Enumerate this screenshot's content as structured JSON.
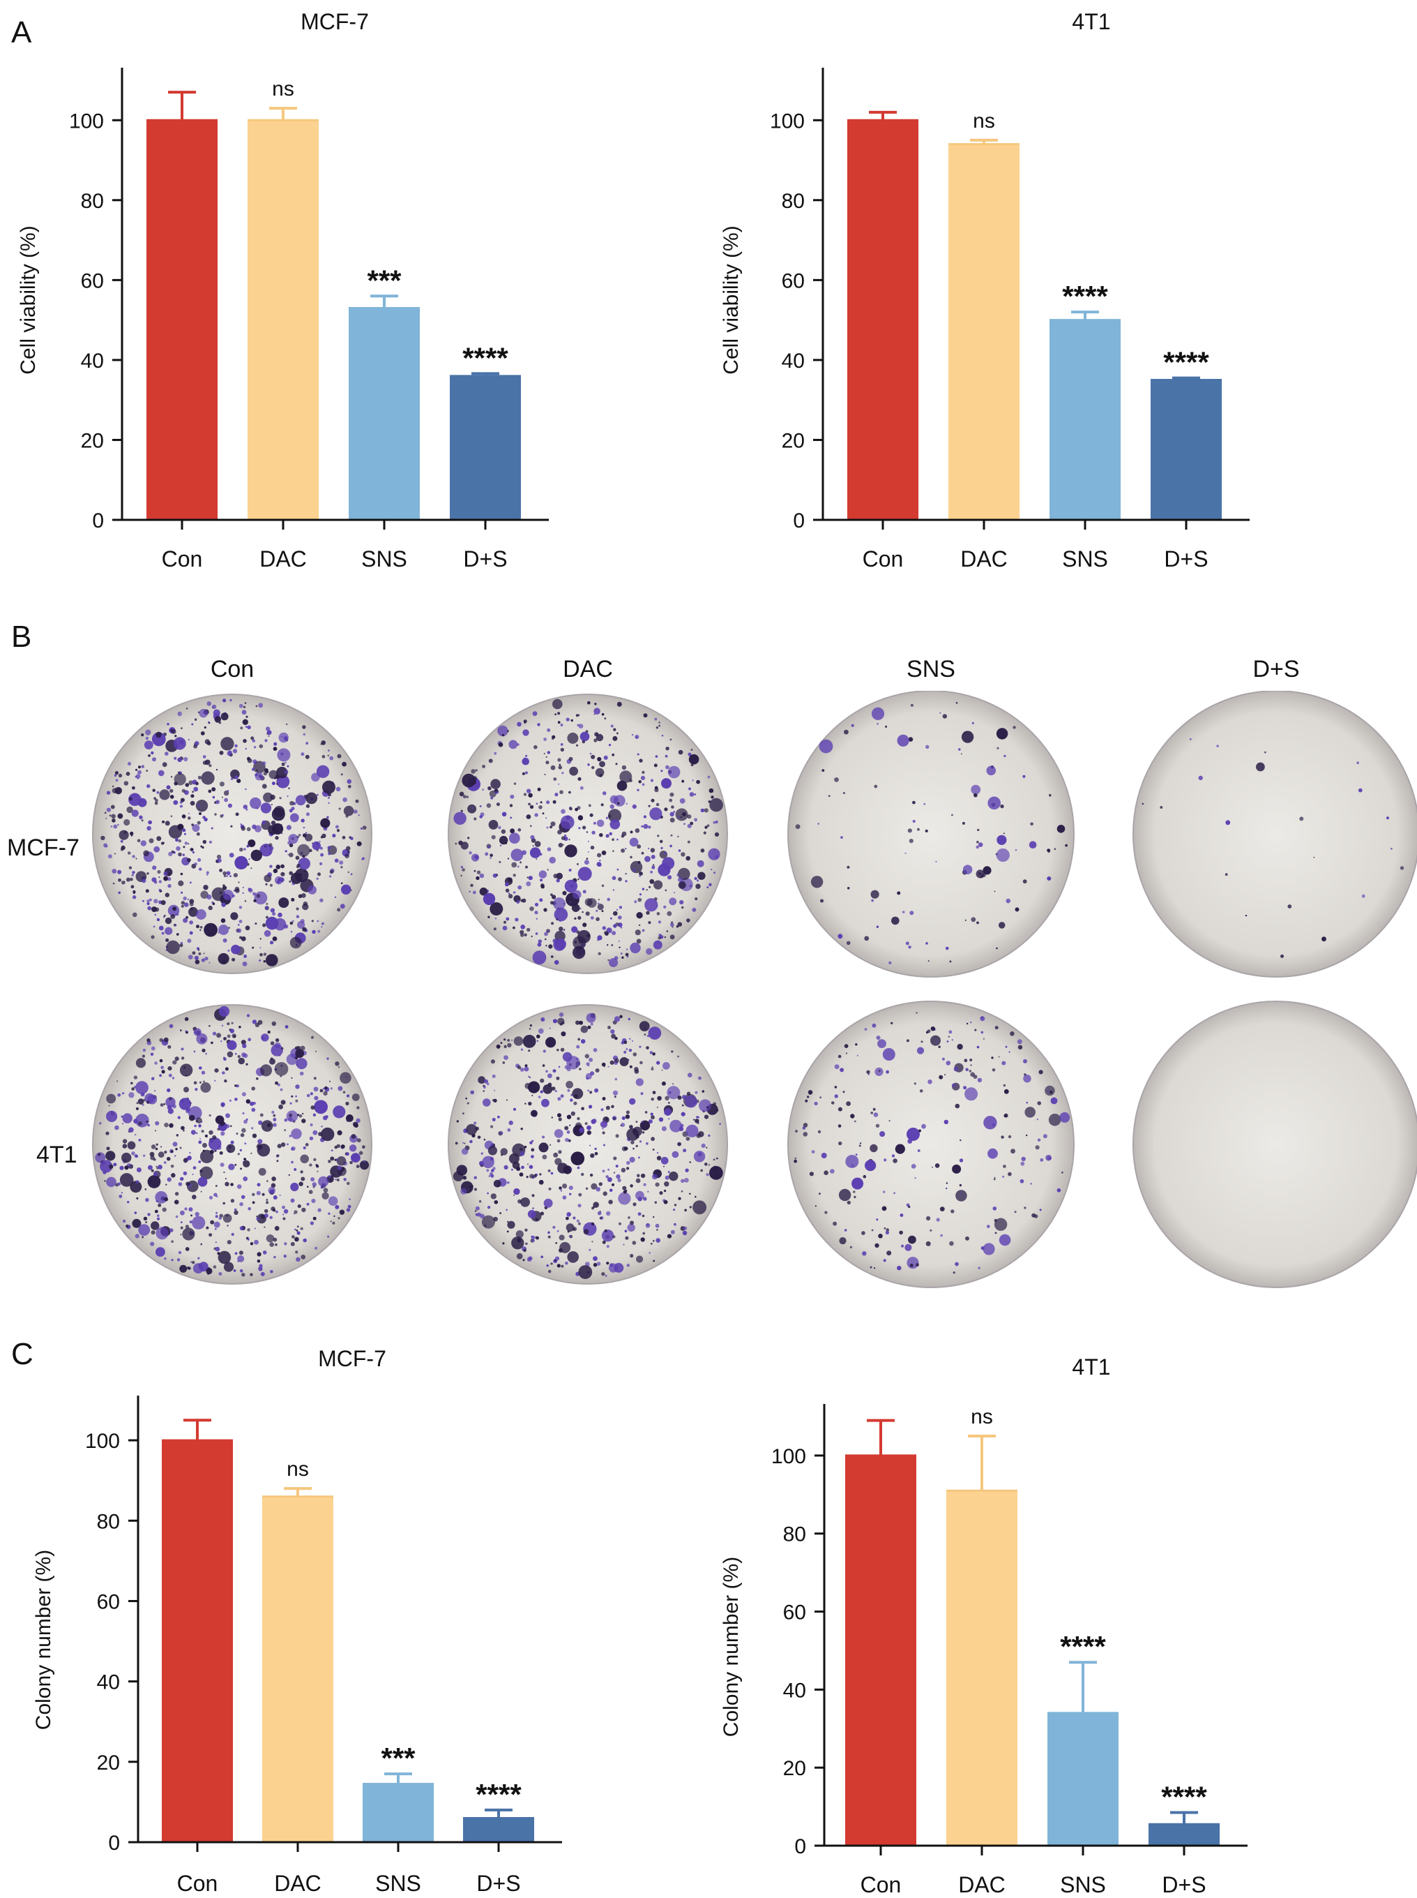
{
  "panels": {
    "a": "A",
    "b": "B",
    "c": "C"
  },
  "colors": {
    "con": "#d33a30",
    "dac": "#fbd28f",
    "sns": "#80b4d8",
    "ds": "#4a73a8",
    "axis": "#111111",
    "plate_bg": "#e3e1dc",
    "stain": "#5b3fb1"
  },
  "chart_data": [
    {
      "type": "bar",
      "title": "MCF-7",
      "ylabel": "Cell viability (%)",
      "categories": [
        "Con",
        "DAC",
        "SNS",
        "D+S"
      ],
      "values": [
        100,
        100,
        53,
        36
      ],
      "errors": [
        7,
        3,
        3,
        0.6
      ],
      "annotations": [
        "",
        "ns",
        "***",
        "****"
      ],
      "ylim": [
        0,
        110
      ],
      "yticks": [
        0,
        20,
        40,
        60,
        80,
        100
      ]
    },
    {
      "type": "bar",
      "title": "4T1",
      "ylabel": "Cell viability (%)",
      "categories": [
        "Con",
        "DAC",
        "SNS",
        "D+S"
      ],
      "values": [
        100,
        94,
        50,
        35
      ],
      "errors": [
        2,
        1,
        2,
        0.5
      ],
      "annotations": [
        "",
        "ns",
        "****",
        "****"
      ],
      "ylim": [
        0,
        110
      ],
      "yticks": [
        0,
        20,
        40,
        60,
        80,
        100
      ]
    },
    {
      "type": "bar",
      "title": "MCF-7",
      "ylabel": "Colony number (%)",
      "categories": [
        "Con",
        "DAC",
        "SNS",
        "D+S"
      ],
      "values": [
        100,
        86,
        14.5,
        6
      ],
      "errors": [
        5,
        2,
        2.5,
        2
      ],
      "annotations": [
        "",
        "ns",
        "***",
        "****"
      ],
      "ylim": [
        0,
        108
      ],
      "yticks": [
        0,
        20,
        40,
        60,
        80,
        100
      ]
    },
    {
      "type": "bar",
      "title": "4T1",
      "ylabel": "Colony number (%)",
      "categories": [
        "Con",
        "DAC",
        "SNS",
        "D+S"
      ],
      "values": [
        100,
        91,
        34,
        5.5
      ],
      "errors": [
        9,
        14,
        13,
        3
      ],
      "annotations": [
        "",
        "ns",
        "****",
        "****"
      ],
      "ylim": [
        0,
        110
      ],
      "yticks": [
        0,
        20,
        40,
        60,
        80,
        100
      ]
    }
  ],
  "plates": {
    "columns": [
      "Con",
      "DAC",
      "SNS",
      "D+S"
    ],
    "rows": [
      "MCF-7",
      "4T1"
    ],
    "colony_density": [
      [
        1.0,
        0.85,
        0.15,
        0.03
      ],
      [
        1.0,
        0.9,
        0.35,
        0.0
      ]
    ]
  }
}
